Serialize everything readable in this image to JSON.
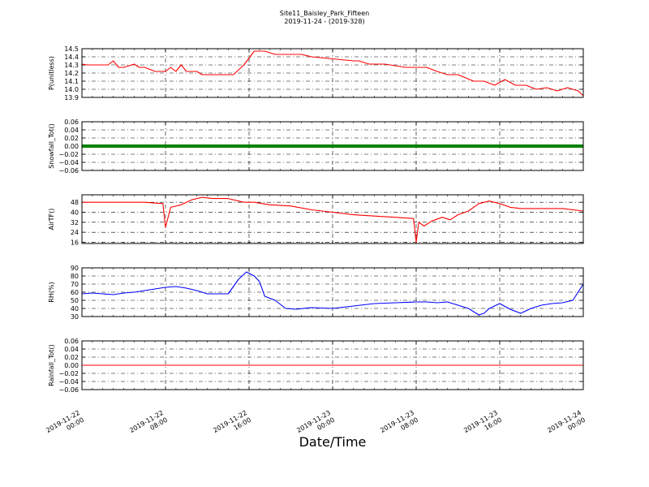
{
  "title_line1": "Site11_Baisley_Park_Fifteen",
  "title_line2": "2019-11-24 - (2019-328)",
  "xlabel": "Date/Time",
  "x_ticks": [
    {
      "line1": "2019-11-22",
      "line2": "00:00"
    },
    {
      "line1": "2019-11-22",
      "line2": "08:00"
    },
    {
      "line1": "2019-11-22",
      "line2": "16:00"
    },
    {
      "line1": "2019-11-23",
      "line2": "00:00"
    },
    {
      "line1": "2019-11-23",
      "line2": "08:00"
    },
    {
      "line1": "2019-11-23",
      "line2": "16:00"
    },
    {
      "line1": "2019-11-24",
      "line2": "00:00"
    }
  ],
  "colors": {
    "red": "#ff0000",
    "green": "#008000",
    "blue": "#0000ff",
    "grid": "#000000"
  },
  "chart_data": [
    {
      "type": "line",
      "ylabel": "P(unitless)",
      "ylim": [
        13.9,
        14.5
      ],
      "yticks": [
        13.9,
        14.0,
        14.1,
        14.2,
        14.3,
        14.4,
        14.5
      ],
      "ytick_labels": [
        "13.9",
        "14.0",
        "14.1",
        "14.2",
        "14.3",
        "14.4",
        "14.5"
      ],
      "grid": true,
      "color": "red",
      "series": [
        {
          "x": [
            "2019-11-22 00:00",
            "2019-11-22 00:30",
            "2019-11-22 02:30",
            "2019-11-22 03:00",
            "2019-11-22 03:30",
            "2019-11-22 04:00",
            "2019-11-22 05:00",
            "2019-11-22 05:30",
            "2019-11-22 06:00",
            "2019-11-22 07:00",
            "2019-11-22 08:00",
            "2019-11-22 08:30",
            "2019-11-22 09:00",
            "2019-11-22 09:30",
            "2019-11-22 10:00",
            "2019-11-22 11:00",
            "2019-11-22 11:30",
            "2019-11-22 12:00",
            "2019-11-22 13:00",
            "2019-11-22 14:00",
            "2019-11-22 14:30",
            "2019-11-22 15:30",
            "2019-11-22 16:30",
            "2019-11-22 17:30",
            "2019-11-22 18:30",
            "2019-11-22 19:00",
            "2019-11-22 21:00",
            "2019-11-22 22:00",
            "2019-11-23 02:00",
            "2019-11-23 02:30",
            "2019-11-23 03:30",
            "2019-11-23 05:00",
            "2019-11-23 07:00",
            "2019-11-23 08:00",
            "2019-11-23 09:00",
            "2019-11-23 10:00",
            "2019-11-23 11:00",
            "2019-11-23 12:00",
            "2019-11-23 13:30",
            "2019-11-23 14:30",
            "2019-11-23 15:30",
            "2019-11-23 16:30",
            "2019-11-23 17:30",
            "2019-11-23 18:30",
            "2019-11-23 19:30",
            "2019-11-23 20:30",
            "2019-11-23 21:30",
            "2019-11-23 22:30",
            "2019-11-23 23:30",
            "2019-11-24 00:00"
          ],
          "y": [
            14.31,
            14.3,
            14.3,
            14.35,
            14.27,
            14.27,
            14.31,
            14.27,
            14.27,
            14.22,
            14.22,
            14.27,
            14.22,
            14.3,
            14.22,
            14.22,
            14.18,
            14.18,
            14.18,
            14.18,
            14.18,
            14.3,
            14.47,
            14.47,
            14.43,
            14.43,
            14.43,
            14.4,
            14.35,
            14.35,
            14.31,
            14.31,
            14.27,
            14.27,
            14.27,
            14.22,
            14.18,
            14.18,
            14.1,
            14.1,
            14.05,
            14.12,
            14.05,
            14.05,
            14.0,
            14.02,
            13.98,
            14.02,
            13.98,
            13.92
          ]
        }
      ]
    },
    {
      "type": "line",
      "ylabel": "Snowfall_Tot()",
      "ylim": [
        -0.06,
        0.06
      ],
      "yticks": [
        -0.06,
        -0.04,
        -0.02,
        0.0,
        0.02,
        0.04,
        0.06
      ],
      "ytick_labels": [
        "−0.06",
        "−0.04",
        "−0.02",
        "0.00",
        "0.02",
        "0.04",
        "0.06"
      ],
      "grid": true,
      "color": "green",
      "series": [
        {
          "x": [
            "2019-11-22 00:00",
            "2019-11-24 00:00"
          ],
          "y": [
            0.0,
            0.0
          ]
        }
      ]
    },
    {
      "type": "line",
      "ylabel": "AirTF()",
      "ylim": [
        15,
        54
      ],
      "yticks": [
        16,
        24,
        32,
        40,
        48
      ],
      "ytick_labels": [
        "16",
        "24",
        "32",
        "40",
        "48"
      ],
      "grid": true,
      "color": "red",
      "series": [
        {
          "x": [
            "2019-11-22 00:00",
            "2019-11-22 02:00",
            "2019-11-22 04:00",
            "2019-11-22 06:00",
            "2019-11-22 07:45",
            "2019-11-22 08:00",
            "2019-11-22 08:30",
            "2019-11-22 09:30",
            "2019-11-22 10:30",
            "2019-11-22 11:30",
            "2019-11-22 12:30",
            "2019-11-22 14:00",
            "2019-11-22 15:30",
            "2019-11-22 16:30",
            "2019-11-22 18:00",
            "2019-11-22 20:00",
            "2019-11-22 22:00",
            "2019-11-23 00:00",
            "2019-11-23 02:00",
            "2019-11-23 04:00",
            "2019-11-23 06:00",
            "2019-11-23 07:45",
            "2019-11-23 08:00",
            "2019-11-23 08:15",
            "2019-11-23 08:45",
            "2019-11-23 09:30",
            "2019-11-23 10:30",
            "2019-11-23 11:15",
            "2019-11-23 12:00",
            "2019-11-23 13:00",
            "2019-11-23 14:00",
            "2019-11-23 15:00",
            "2019-11-23 16:00",
            "2019-11-23 17:00",
            "2019-11-23 18:00",
            "2019-11-23 20:00",
            "2019-11-23 22:00",
            "2019-11-24 00:00"
          ],
          "y": [
            48,
            48,
            48,
            48,
            47,
            28,
            44,
            46,
            50,
            52,
            51,
            51,
            48,
            48,
            46,
            45,
            42,
            40,
            38,
            37,
            36,
            35,
            16,
            32,
            29,
            33,
            36,
            34,
            38,
            41,
            47,
            49,
            47,
            44,
            43,
            43,
            43,
            41
          ]
        }
      ]
    },
    {
      "type": "line",
      "ylabel": "RH(%)",
      "ylim": [
        30,
        90
      ],
      "yticks": [
        30,
        40,
        50,
        60,
        70,
        80,
        90
      ],
      "ytick_labels": [
        "30",
        "40",
        "50",
        "60",
        "70",
        "80",
        "90"
      ],
      "grid": true,
      "color": "blue",
      "series": [
        {
          "x": [
            "2019-11-22 00:00",
            "2019-11-22 01:00",
            "2019-11-22 02:00",
            "2019-11-22 03:00",
            "2019-11-22 04:00",
            "2019-11-22 05:00",
            "2019-11-22 06:00",
            "2019-11-22 07:00",
            "2019-11-22 08:00",
            "2019-11-22 09:00",
            "2019-11-22 10:00",
            "2019-11-22 11:00",
            "2019-11-22 12:00",
            "2019-11-22 13:00",
            "2019-11-22 14:00",
            "2019-11-22 15:00",
            "2019-11-22 15:45",
            "2019-11-22 16:30",
            "2019-11-22 17:00",
            "2019-11-22 17:30",
            "2019-11-22 18:30",
            "2019-11-22 19:30",
            "2019-11-22 20:30",
            "2019-11-22 22:00",
            "2019-11-23 00:00",
            "2019-11-23 02:00",
            "2019-11-23 04:00",
            "2019-11-23 06:00",
            "2019-11-23 08:00",
            "2019-11-23 09:00",
            "2019-11-23 10:00",
            "2019-11-23 11:00",
            "2019-11-23 12:00",
            "2019-11-23 13:00",
            "2019-11-23 14:00",
            "2019-11-23 14:30",
            "2019-11-23 15:00",
            "2019-11-23 16:00",
            "2019-11-23 17:00",
            "2019-11-23 18:00",
            "2019-11-23 19:00",
            "2019-11-23 20:00",
            "2019-11-23 21:00",
            "2019-11-23 22:00",
            "2019-11-23 23:00",
            "2019-11-24 00:00"
          ],
          "y": [
            58,
            59,
            58,
            57,
            59,
            60,
            62,
            64,
            66,
            67,
            65,
            62,
            58,
            58,
            58,
            76,
            85,
            80,
            73,
            55,
            50,
            40,
            39,
            41,
            40,
            43,
            46,
            47,
            48,
            48,
            47,
            48,
            44,
            40,
            32,
            34,
            40,
            46,
            39,
            34,
            40,
            44,
            46,
            47,
            50,
            70
          ]
        }
      ]
    },
    {
      "type": "line",
      "ylabel": "Rainfall_Tot()",
      "ylim": [
        -0.06,
        0.06
      ],
      "yticks": [
        -0.06,
        -0.04,
        -0.02,
        0.0,
        0.02,
        0.04,
        0.06
      ],
      "ytick_labels": [
        "−0.06",
        "−0.04",
        "−0.02",
        "0.00",
        "0.02",
        "0.04",
        "0.06"
      ],
      "grid": true,
      "color": "red",
      "series": [
        {
          "x": [
            "2019-11-22 00:00",
            "2019-11-24 00:00"
          ],
          "y": [
            0.0,
            0.0
          ]
        }
      ]
    }
  ]
}
